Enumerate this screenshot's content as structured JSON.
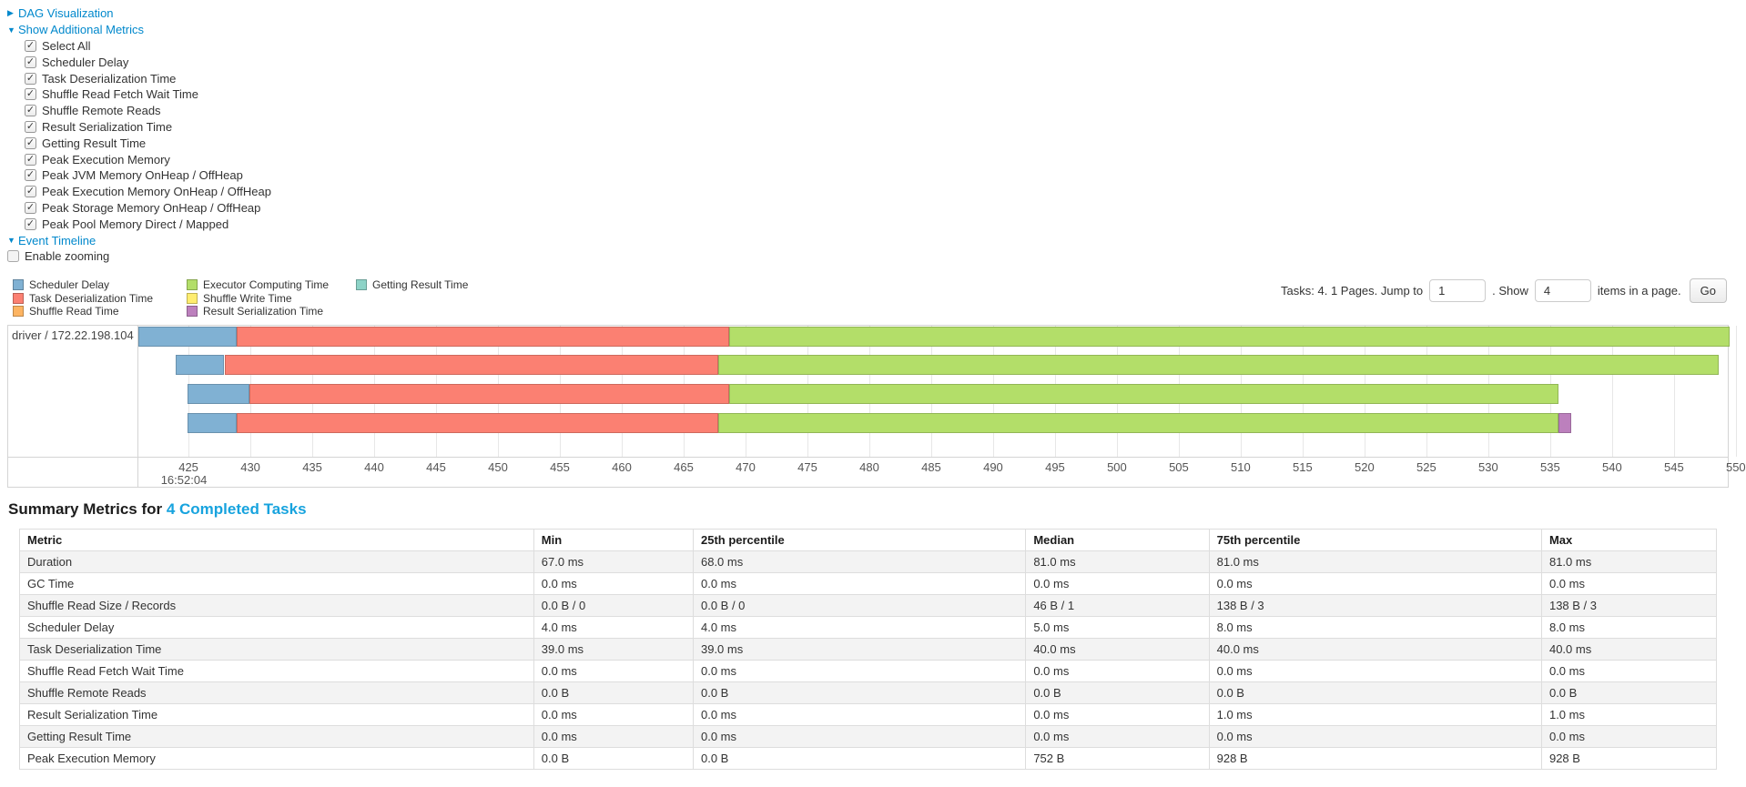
{
  "controls": {
    "dag": {
      "arrow": "▶",
      "label": "DAG Visualization"
    },
    "metrics_toggle": {
      "arrow": "▼",
      "label": "Show Additional Metrics"
    },
    "checkboxes": [
      {
        "label": "Select All",
        "checked": true
      },
      {
        "label": "Scheduler Delay",
        "checked": true
      },
      {
        "label": "Task Deserialization Time",
        "checked": true
      },
      {
        "label": "Shuffle Read Fetch Wait Time",
        "checked": true
      },
      {
        "label": "Shuffle Remote Reads",
        "checked": true
      },
      {
        "label": "Result Serialization Time",
        "checked": true
      },
      {
        "label": "Getting Result Time",
        "checked": true
      },
      {
        "label": "Peak Execution Memory",
        "checked": true
      },
      {
        "label": "Peak JVM Memory OnHeap / OffHeap",
        "checked": true
      },
      {
        "label": "Peak Execution Memory OnHeap / OffHeap",
        "checked": true
      },
      {
        "label": "Peak Storage Memory OnHeap / OffHeap",
        "checked": true
      },
      {
        "label": "Peak Pool Memory Direct / Mapped",
        "checked": true
      }
    ],
    "timeline_toggle": {
      "arrow": "▼",
      "label": "Event Timeline"
    },
    "enable_zooming": {
      "label": "Enable zooming",
      "checked": false
    }
  },
  "legend": [
    {
      "id": "scheduler_delay",
      "label": "Scheduler Delay",
      "color": "#80B1D3"
    },
    {
      "id": "task_deserialization_time",
      "label": "Task Deserialization Time",
      "color": "#FB8072"
    },
    {
      "id": "shuffle_read_time",
      "label": "Shuffle Read Time",
      "color": "#FDB462"
    },
    {
      "id": "executor_computing_time",
      "label": "Executor Computing Time",
      "color": "#B3DE69"
    },
    {
      "id": "shuffle_write_time",
      "label": "Shuffle Write Time",
      "color": "#FFED6F"
    },
    {
      "id": "result_serialization_time",
      "label": "Result Serialization Time",
      "color": "#BC80BD"
    },
    {
      "id": "getting_result_time",
      "label": "Getting Result Time",
      "color": "#8DD3C7"
    }
  ],
  "pagination": {
    "prefix": "Tasks: 4. 1 Pages. Jump to",
    "jump_value": "1",
    "mid": ". Show",
    "show_value": "4",
    "suffix": "items in a page.",
    "go_label": "Go"
  },
  "timeline": {
    "row_label": "driver / 172.22.198.104",
    "axis": {
      "min": 420.95,
      "max": 549.35,
      "tick_from": 425,
      "tick_to": 550,
      "tick_step": 5,
      "time_label": "16:52:04"
    },
    "bar_tops": [
      1,
      32,
      64,
      96
    ],
    "bars": [
      {
        "segments": [
          {
            "metric": "scheduler_delay",
            "from": 420.95,
            "to": 428.9
          },
          {
            "metric": "task_deserialization_time",
            "from": 428.9,
            "to": 468.7
          },
          {
            "metric": "executor_computing_time",
            "from": 468.7,
            "to": 549.5
          }
        ]
      },
      {
        "segments": [
          {
            "metric": "scheduler_delay",
            "from": 423.95,
            "to": 427.9
          },
          {
            "metric": "task_deserialization_time",
            "from": 427.9,
            "to": 467.8
          },
          {
            "metric": "executor_computing_time",
            "from": 467.8,
            "to": 548.6
          }
        ]
      },
      {
        "segments": [
          {
            "metric": "scheduler_delay",
            "from": 424.95,
            "to": 429.9
          },
          {
            "metric": "task_deserialization_time",
            "from": 429.9,
            "to": 468.7
          },
          {
            "metric": "executor_computing_time",
            "from": 468.7,
            "to": 535.7
          }
        ]
      },
      {
        "segments": [
          {
            "metric": "scheduler_delay",
            "from": 424.95,
            "to": 428.9
          },
          {
            "metric": "task_deserialization_time",
            "from": 428.9,
            "to": 467.8
          },
          {
            "metric": "executor_computing_time",
            "from": 467.8,
            "to": 535.7
          },
          {
            "metric": "result_serialization_time",
            "from": 535.7,
            "to": 536.7
          }
        ]
      }
    ]
  },
  "summary": {
    "title_prefix": "Summary Metrics for ",
    "title_link": "4 Completed Tasks",
    "table": {
      "col_widths_pct": [
        30.3,
        9.4,
        19.6,
        10.8,
        19.6,
        10.3
      ],
      "headers": [
        "Metric",
        "Min",
        "25th percentile",
        "Median",
        "75th percentile",
        "Max"
      ],
      "rows": [
        [
          "Duration",
          "67.0 ms",
          "68.0 ms",
          "81.0 ms",
          "81.0 ms",
          "81.0 ms"
        ],
        [
          "GC Time",
          "0.0 ms",
          "0.0 ms",
          "0.0 ms",
          "0.0 ms",
          "0.0 ms"
        ],
        [
          "Shuffle Read Size / Records",
          "0.0 B / 0",
          "0.0 B / 0",
          "46 B / 1",
          "138 B / 3",
          "138 B / 3"
        ],
        [
          "Scheduler Delay",
          "4.0 ms",
          "4.0 ms",
          "5.0 ms",
          "8.0 ms",
          "8.0 ms"
        ],
        [
          "Task Deserialization Time",
          "39.0 ms",
          "39.0 ms",
          "40.0 ms",
          "40.0 ms",
          "40.0 ms"
        ],
        [
          "Shuffle Read Fetch Wait Time",
          "0.0 ms",
          "0.0 ms",
          "0.0 ms",
          "0.0 ms",
          "0.0 ms"
        ],
        [
          "Shuffle Remote Reads",
          "0.0 B",
          "0.0 B",
          "0.0 B",
          "0.0 B",
          "0.0 B"
        ],
        [
          "Result Serialization Time",
          "0.0 ms",
          "0.0 ms",
          "0.0 ms",
          "1.0 ms",
          "1.0 ms"
        ],
        [
          "Getting Result Time",
          "0.0 ms",
          "0.0 ms",
          "0.0 ms",
          "0.0 ms",
          "0.0 ms"
        ],
        [
          "Peak Execution Memory",
          "0.0 B",
          "0.0 B",
          "752 B",
          "928 B",
          "928 B"
        ]
      ]
    }
  },
  "colors": {
    "link": "#0088cc",
    "heading_link": "#17a3de",
    "grid": "#e7e7e7",
    "chart_border": "#d4d4d4",
    "table_border": "#dddddd",
    "stripe": "#f3f3f3"
  }
}
